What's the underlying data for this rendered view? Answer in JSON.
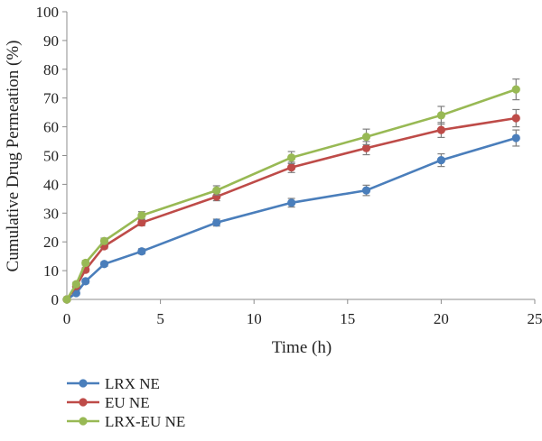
{
  "chart_data": {
    "type": "line",
    "xlabel": "Time (h)",
    "ylabel": "Cumulative Drug Permeation (%)",
    "xlim": [
      0,
      25
    ],
    "ylim": [
      0,
      100
    ],
    "x_ticks": [
      0,
      5,
      10,
      15,
      20,
      25
    ],
    "y_ticks": [
      0,
      10,
      20,
      30,
      40,
      50,
      60,
      70,
      80,
      90,
      100
    ],
    "x_tick_labels": [
      "0",
      "5",
      "10",
      "15",
      "20",
      "25"
    ],
    "y_tick_labels": [
      "0",
      "10",
      "20",
      "30",
      "40",
      "50",
      "60",
      "70",
      "80",
      "90",
      "100"
    ],
    "grid": false,
    "legend": "bottom-left",
    "x": [
      0,
      0.5,
      1,
      2,
      4,
      8,
      12,
      16,
      20,
      24
    ],
    "series": [
      {
        "name": "LRX NE",
        "color": "#4a7ebb",
        "values": [
          0,
          2.2,
          6.3,
          12.3,
          16.7,
          26.7,
          33.6,
          37.9,
          48.4,
          56.1
        ],
        "errors": [
          0.4,
          0.6,
          0.7,
          0.8,
          0.9,
          1.2,
          1.5,
          1.8,
          2.2,
          2.8
        ]
      },
      {
        "name": "EU NE",
        "color": "#be4b48",
        "values": [
          0,
          4.6,
          10.3,
          18.5,
          26.7,
          35.7,
          45.9,
          52.6,
          58.9,
          63.0
        ],
        "errors": [
          0.4,
          0.6,
          0.8,
          0.9,
          1.1,
          1.4,
          1.8,
          2.3,
          2.6,
          3.0
        ]
      },
      {
        "name": "LRX-EU NE",
        "color": "#98b954",
        "values": [
          0,
          5.3,
          12.7,
          20.3,
          29.2,
          37.9,
          49.3,
          56.5,
          64.0,
          73.0
        ],
        "errors": [
          0.4,
          0.7,
          0.8,
          1.0,
          1.3,
          1.6,
          2.1,
          2.7,
          3.1,
          3.6
        ]
      }
    ]
  }
}
